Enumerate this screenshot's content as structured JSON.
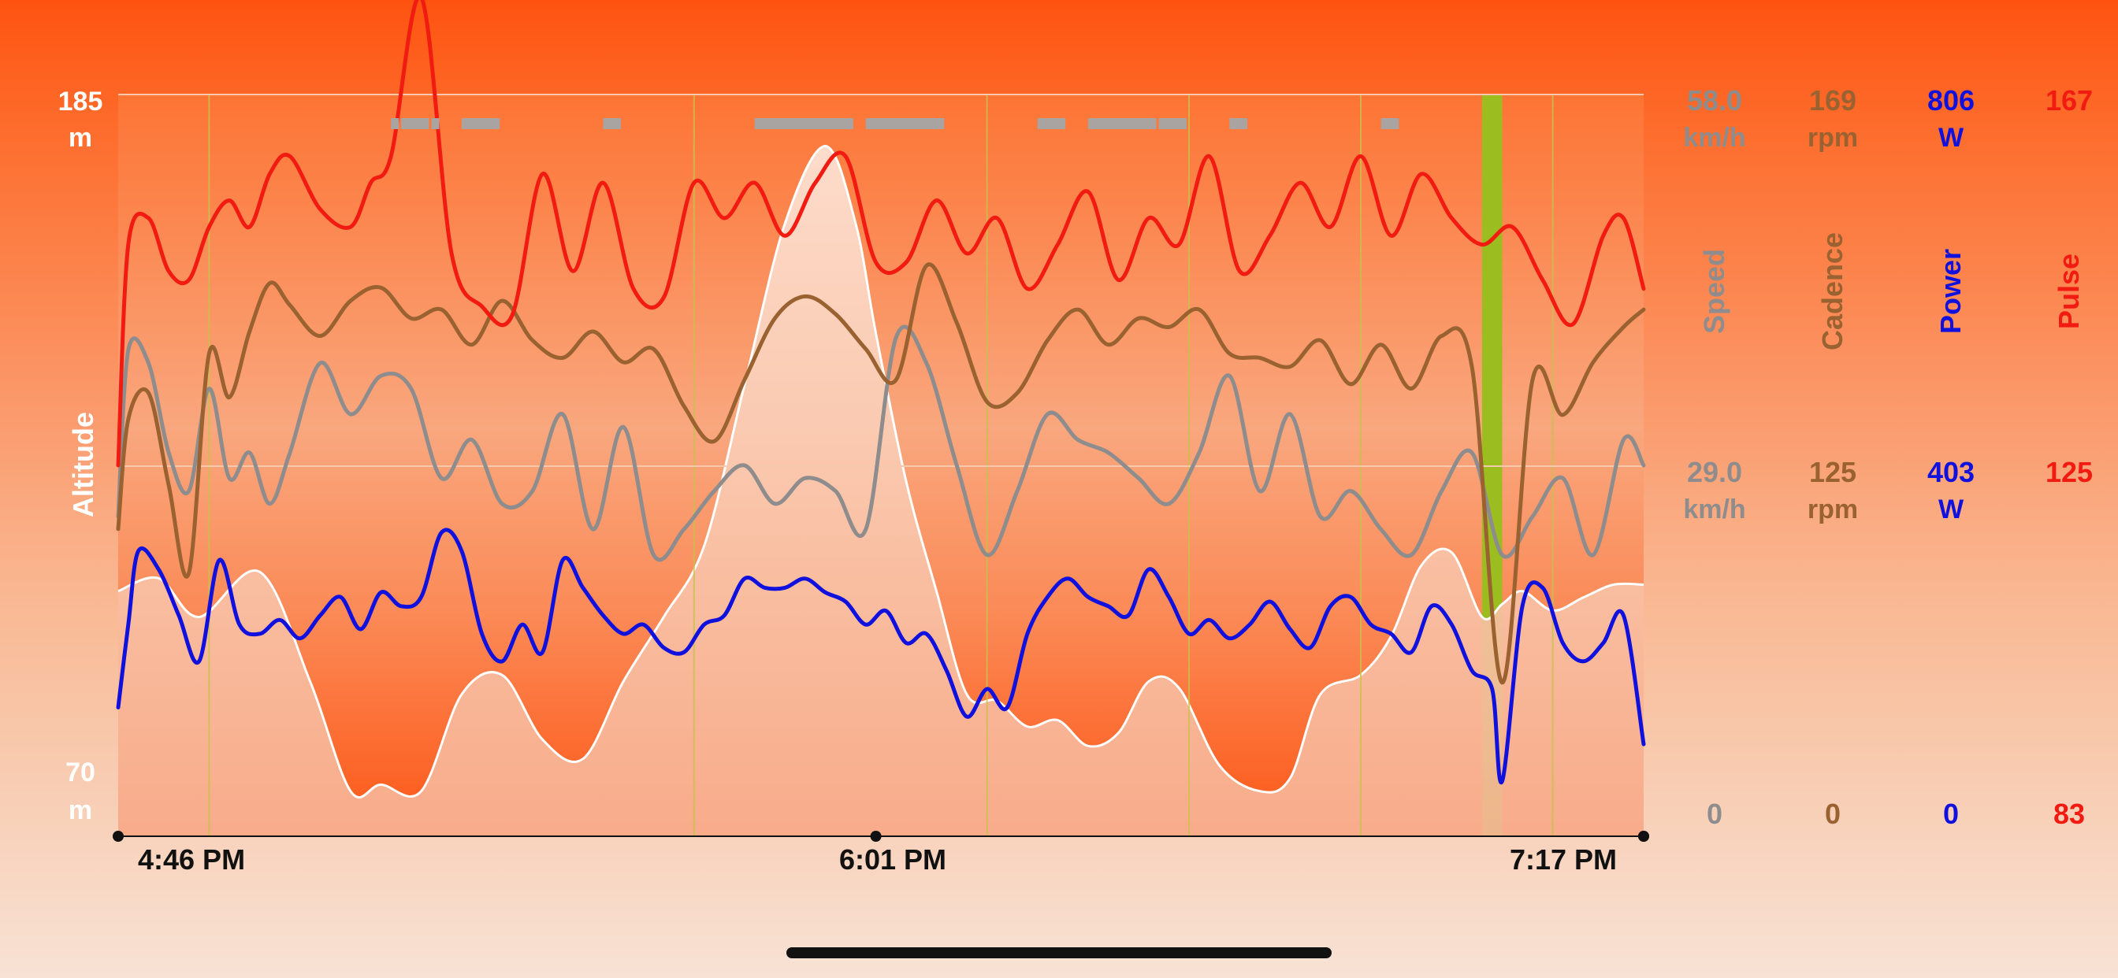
{
  "chart_data": {
    "type": "line",
    "altitude_axis": {
      "label": "Altitude",
      "max_label": "185",
      "min_label": "70",
      "unit": "m",
      "range": [
        70,
        185
      ],
      "unit_color": "#ffffff"
    },
    "x_axis": {
      "type": "time",
      "range": [
        "16:46",
        "19:17"
      ],
      "tick_labels": [
        "4:46 PM",
        "6:01 PM",
        "7:17 PM"
      ],
      "ticks": [
        "16:46",
        "18:01",
        "19:17"
      ]
    },
    "marker_lines": [
      "16:55",
      "17:43",
      "18:12",
      "18:32",
      "18:49",
      "19:08"
    ],
    "series_axes": [
      {
        "name": "Speed",
        "color": "#8e8c8c",
        "top": "58.0",
        "mid": "29.0",
        "bottom": "0",
        "unit": "km/h",
        "range": [
          0,
          58
        ]
      },
      {
        "name": "Cadence",
        "color": "#9a6230",
        "top": "169",
        "mid": "125",
        "bottom": "0",
        "unit": "rpm",
        "range": [
          0,
          169
        ]
      },
      {
        "name": "Power",
        "color": "#1111dd",
        "top": "806",
        "mid": "403",
        "bottom": "0",
        "unit": "W",
        "range": [
          0,
          806
        ]
      },
      {
        "name": "Pulse",
        "color": "#f21b12",
        "top": "167",
        "mid": "125",
        "bottom": "83",
        "unit": "",
        "range": [
          83,
          167
        ]
      }
    ],
    "series": [
      {
        "name": "Altitude",
        "color": "#ffffff",
        "x": [
          "16:46",
          "16:50",
          "16:54",
          "17:00",
          "17:05",
          "17:09",
          "17:12",
          "17:16",
          "17:20",
          "17:24",
          "17:28",
          "17:32",
          "17:36",
          "17:40",
          "17:44",
          "17:48",
          "17:52",
          "17:56",
          "17:59",
          "18:01",
          "18:04",
          "18:07",
          "18:10",
          "18:13",
          "18:16",
          "18:19",
          "18:22",
          "18:25",
          "18:28",
          "18:31",
          "18:35",
          "18:39",
          "18:42",
          "18:45",
          "18:49",
          "18:52",
          "18:55",
          "18:58",
          "19:01",
          "19:03",
          "19:05",
          "19:08",
          "19:11",
          "19:14",
          "19:17"
        ],
        "values": [
          108,
          110,
          104,
          111,
          94,
          77,
          78,
          77,
          92,
          95,
          85,
          82,
          94,
          104,
          115,
          140,
          165,
          177,
          165,
          148,
          125,
          108,
          92,
          91,
          87,
          88,
          84,
          86,
          94,
          93,
          81,
          77,
          79,
          92,
          95,
          101,
          112,
          114,
          104,
          106,
          108,
          105,
          107,
          109,
          109
        ]
      },
      {
        "name": "Pulse",
        "x": [
          "16:46",
          "16:47",
          "16:49",
          "16:51",
          "16:53",
          "16:55",
          "16:57",
          "16:59",
          "17:01",
          "17:03",
          "17:06",
          "17:09",
          "17:11",
          "17:13",
          "17:16",
          "17:19",
          "17:22",
          "17:25",
          "17:28",
          "17:31",
          "17:34",
          "17:37",
          "17:40",
          "17:43",
          "17:46",
          "17:49",
          "17:52",
          "17:55",
          "17:58",
          "18:01",
          "18:04",
          "18:07",
          "18:10",
          "18:13",
          "18:16",
          "18:19",
          "18:22",
          "18:25",
          "18:28",
          "18:31",
          "18:34",
          "18:37",
          "18:40",
          "18:43",
          "18:46",
          "18:49",
          "18:52",
          "18:55",
          "18:58",
          "19:01",
          "19:04",
          "19:07",
          "19:10",
          "19:13",
          "19:15",
          "19:17"
        ],
        "values": [
          125,
          150,
          153,
          147,
          146,
          152,
          155,
          152,
          158,
          160,
          154,
          152,
          157,
          160,
          178,
          149,
          143,
          142,
          158,
          147,
          157,
          145,
          144,
          157,
          153,
          157,
          151,
          157,
          160,
          148,
          148,
          155,
          149,
          153,
          145,
          150,
          156,
          146,
          153,
          150,
          160,
          147,
          151,
          157,
          152,
          160,
          151,
          158,
          153,
          150,
          152,
          146,
          141,
          151,
          153,
          145
        ]
      },
      {
        "name": "Speed",
        "x": [
          "16:46",
          "16:47",
          "16:49",
          "16:51",
          "16:53",
          "16:55",
          "16:57",
          "16:59",
          "17:01",
          "17:03",
          "17:06",
          "17:09",
          "17:12",
          "17:15",
          "17:18",
          "17:21",
          "17:24",
          "17:27",
          "17:30",
          "17:33",
          "17:36",
          "17:39",
          "17:42",
          "17:45",
          "17:48",
          "17:51",
          "17:54",
          "17:57",
          "18:00",
          "18:03",
          "18:06",
          "18:09",
          "18:12",
          "18:15",
          "18:18",
          "18:21",
          "18:24",
          "18:27",
          "18:30",
          "18:33",
          "18:36",
          "18:39",
          "18:42",
          "18:45",
          "18:48",
          "18:51",
          "18:54",
          "18:57",
          "19:00",
          "19:03",
          "19:06",
          "19:09",
          "19:12",
          "19:15",
          "19:17"
        ],
        "values": [
          25,
          38,
          37,
          30,
          27,
          35,
          28,
          30,
          26,
          30,
          37,
          33,
          36,
          35,
          28,
          31,
          26,
          27,
          33,
          24,
          32,
          22,
          24,
          27,
          29,
          26,
          28,
          27,
          24,
          39,
          37,
          29,
          22,
          27,
          33,
          31,
          30,
          28,
          26,
          30,
          36,
          27,
          33,
          25,
          27,
          24,
          22,
          27,
          30,
          22,
          25,
          28,
          22,
          31,
          29
        ]
      },
      {
        "name": "Cadence",
        "x": [
          "16:46",
          "16:47",
          "16:49",
          "16:51",
          "16:53",
          "16:55",
          "16:57",
          "16:59",
          "17:01",
          "17:03",
          "17:06",
          "17:09",
          "17:12",
          "17:15",
          "17:18",
          "17:21",
          "17:24",
          "17:27",
          "17:30",
          "17:33",
          "17:36",
          "17:39",
          "17:42",
          "17:45",
          "17:48",
          "17:51",
          "17:54",
          "17:57",
          "18:00",
          "18:03",
          "18:06",
          "18:09",
          "18:12",
          "18:15",
          "18:18",
          "18:21",
          "18:24",
          "18:27",
          "18:30",
          "18:33",
          "18:36",
          "18:39",
          "18:42",
          "18:45",
          "18:48",
          "18:51",
          "18:54",
          "18:57",
          "19:00",
          "19:03",
          "19:06",
          "19:09",
          "19:12",
          "19:15",
          "19:17"
        ],
        "values": [
          70,
          95,
          101,
          80,
          60,
          110,
          100,
          115,
          126,
          121,
          114,
          122,
          125,
          118,
          120,
          112,
          122,
          113,
          109,
          115,
          108,
          111,
          98,
          90,
          104,
          118,
          123,
          119,
          111,
          104,
          130,
          117,
          99,
          101,
          113,
          120,
          112,
          118,
          116,
          120,
          110,
          109,
          107,
          113,
          103,
          112,
          102,
          114,
          107,
          35,
          104,
          96,
          108,
          116,
          120
        ]
      },
      {
        "name": "Power",
        "x": [
          "16:46",
          "16:47",
          "16:48",
          "16:50",
          "16:52",
          "16:54",
          "16:56",
          "16:58",
          "17:00",
          "17:02",
          "17:04",
          "17:06",
          "17:08",
          "17:10",
          "17:12",
          "17:14",
          "17:16",
          "17:18",
          "17:20",
          "17:22",
          "17:24",
          "17:26",
          "17:28",
          "17:30",
          "17:32",
          "17:34",
          "17:36",
          "17:38",
          "17:40",
          "17:42",
          "17:44",
          "17:46",
          "17:48",
          "17:50",
          "17:52",
          "17:54",
          "17:56",
          "17:58",
          "18:00",
          "18:02",
          "18:04",
          "18:06",
          "18:08",
          "18:10",
          "18:12",
          "18:14",
          "18:16",
          "18:18",
          "18:20",
          "18:22",
          "18:24",
          "18:26",
          "18:28",
          "18:30",
          "18:32",
          "18:34",
          "18:36",
          "18:38",
          "18:40",
          "18:42",
          "18:44",
          "18:46",
          "18:48",
          "18:50",
          "18:52",
          "18:54",
          "18:56",
          "18:58",
          "19:00",
          "19:02",
          "19:03",
          "19:05",
          "19:07",
          "19:09",
          "19:11",
          "19:13",
          "19:15",
          "19:17"
        ],
        "values": [
          140,
          230,
          310,
          290,
          240,
          190,
          300,
          230,
          220,
          235,
          215,
          240,
          260,
          225,
          265,
          250,
          260,
          330,
          310,
          220,
          190,
          230,
          200,
          300,
          270,
          240,
          220,
          230,
          205,
          200,
          230,
          240,
          280,
          270,
          270,
          280,
          265,
          255,
          230,
          245,
          210,
          220,
          180,
          130,
          160,
          140,
          220,
          260,
          280,
          260,
          250,
          240,
          290,
          260,
          220,
          235,
          215,
          230,
          255,
          225,
          205,
          250,
          260,
          230,
          220,
          200,
          250,
          230,
          180,
          160,
          60,
          250,
          270,
          210,
          190,
          210,
          240,
          100
        ]
      }
    ],
    "segment_bars": [
      {
        "start": "17:13",
        "end": "17:14"
      },
      {
        "start": "17:14",
        "end": "17:17"
      },
      {
        "start": "17:17",
        "end": "17:18"
      },
      {
        "start": "17:20",
        "end": "17:24"
      },
      {
        "start": "17:34",
        "end": "17:36"
      },
      {
        "start": "17:49",
        "end": "17:59"
      },
      {
        "start": "18:00",
        "end": "18:08"
      },
      {
        "start": "18:17",
        "end": "18:20"
      },
      {
        "start": "18:22",
        "end": "18:29"
      },
      {
        "start": "18:29",
        "end": "18:32"
      },
      {
        "start": "18:36",
        "end": "18:38"
      },
      {
        "start": "18:51",
        "end": "18:53"
      }
    ],
    "highlight_band": {
      "start": "19:01",
      "end": "19:03",
      "color": "#9bbd20"
    },
    "grid_lines": [
      "185",
      "125"
    ]
  }
}
